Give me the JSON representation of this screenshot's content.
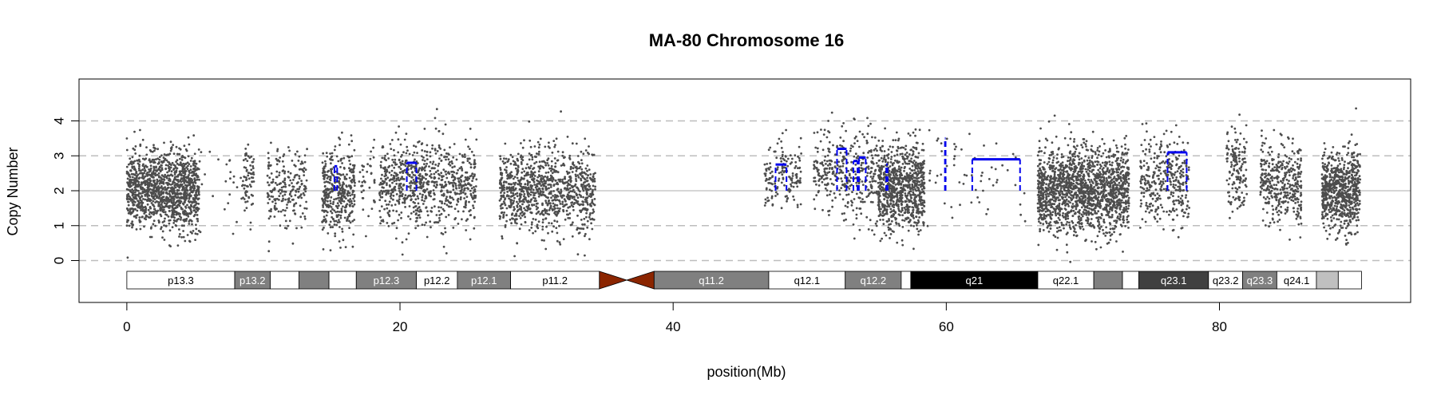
{
  "chart_data": {
    "type": "scatter",
    "title": "MA-80  Chromosome 16",
    "xlabel": "position(Mb)",
    "ylabel": "Copy Number",
    "xlim": [
      -3.5,
      94
    ],
    "ylim": [
      -1.2,
      5.2
    ],
    "x_ticks": [
      0,
      20,
      40,
      60,
      80
    ],
    "y_ticks": [
      0,
      1,
      2,
      3,
      4
    ],
    "reference_lines": {
      "solid": [
        2
      ],
      "dashed": [
        0,
        1,
        3,
        4
      ]
    },
    "colors": {
      "points": "#4d4d4d",
      "segments": "#0000ee",
      "centromere": "#8b2500",
      "grid_dashed": "#bdbdbd",
      "grid_solid": "#c8c8c8"
    },
    "point_clusters": [
      {
        "x_range": [
          0,
          5.3
        ],
        "n": 1300,
        "mean": 2.0,
        "sd": 0.55
      },
      {
        "x_range": [
          5.3,
          8.5
        ],
        "n": 25,
        "mean": 2.2,
        "sd": 0.6
      },
      {
        "x_range": [
          8.5,
          9.3
        ],
        "n": 70,
        "mean": 2.2,
        "sd": 0.5
      },
      {
        "x_range": [
          10.3,
          13.2
        ],
        "n": 220,
        "mean": 2.1,
        "sd": 0.55
      },
      {
        "x_range": [
          14.3,
          16.7
        ],
        "n": 380,
        "mean": 1.9,
        "sd": 0.65
      },
      {
        "x_range": [
          17.0,
          18.2
        ],
        "n": 40,
        "mean": 2.2,
        "sd": 0.5
      },
      {
        "x_range": [
          18.5,
          25.6
        ],
        "n": 800,
        "mean": 2.2,
        "sd": 0.6
      },
      {
        "x_range": [
          27.3,
          34.3
        ],
        "n": 1000,
        "mean": 2.0,
        "sd": 0.6
      },
      {
        "x_range": [
          46.7,
          49.4
        ],
        "n": 160,
        "mean": 2.4,
        "sd": 0.55
      },
      {
        "x_range": [
          50.3,
          52.4
        ],
        "n": 150,
        "mean": 2.6,
        "sd": 0.55
      },
      {
        "x_range": [
          52.4,
          55.0
        ],
        "n": 220,
        "mean": 2.4,
        "sd": 0.65
      },
      {
        "x_range": [
          55.0,
          58.4
        ],
        "n": 850,
        "mean": 2.1,
        "sd": 0.6
      },
      {
        "x_range": [
          58.5,
          65.8
        ],
        "n": 60,
        "mean": 2.4,
        "sd": 0.7
      },
      {
        "x_range": [
          66.7,
          73.4
        ],
        "n": 1700,
        "mean": 2.0,
        "sd": 0.6
      },
      {
        "x_range": [
          74.2,
          77.8
        ],
        "n": 350,
        "mean": 2.3,
        "sd": 0.6
      },
      {
        "x_range": [
          80.5,
          82.0
        ],
        "n": 150,
        "mean": 2.6,
        "sd": 0.55
      },
      {
        "x_range": [
          83.0,
          86.0
        ],
        "n": 380,
        "mean": 2.2,
        "sd": 0.55
      },
      {
        "x_range": [
          87.5,
          90.3
        ],
        "n": 700,
        "mean": 2.0,
        "sd": 0.55
      }
    ],
    "segments": [
      {
        "x0": 15.2,
        "x1": 15.4,
        "y": 2.7,
        "style": "dashed"
      },
      {
        "x0": 20.5,
        "x1": 21.2,
        "y": 2.8,
        "style": "dashed"
      },
      {
        "x0": 47.5,
        "x1": 48.3,
        "y": 2.75,
        "style": "dashed"
      },
      {
        "x0": 52.0,
        "x1": 52.7,
        "y": 3.2,
        "style": "dashed"
      },
      {
        "x0": 53.2,
        "x1": 53.5,
        "y": 2.85,
        "style": "dashed"
      },
      {
        "x0": 53.6,
        "x1": 54.1,
        "y": 2.95,
        "style": "dashed"
      },
      {
        "x0": 55.6,
        "x1": 55.7,
        "y": 2.75,
        "style": "dashed"
      },
      {
        "x0": 59.9,
        "x1": 59.95,
        "y": 3.5,
        "style": "dashed"
      },
      {
        "x0": 61.9,
        "x1": 65.4,
        "y": 2.9,
        "style": "dashed"
      },
      {
        "x0": 76.2,
        "x1": 77.6,
        "y": 3.1,
        "style": "dashed"
      }
    ],
    "cytobands": [
      {
        "name": "p13.3",
        "start": 0,
        "end": 7.9,
        "fill": "#ffffff",
        "text": "#000000"
      },
      {
        "name": "p13.2",
        "start": 7.9,
        "end": 10.5,
        "fill": "#808080",
        "text": "#ffffff"
      },
      {
        "name": "",
        "start": 10.5,
        "end": 12.6,
        "fill": "#ffffff",
        "text": "#000000"
      },
      {
        "name": "",
        "start": 12.6,
        "end": 14.8,
        "fill": "#808080",
        "text": "#ffffff"
      },
      {
        "name": "",
        "start": 14.8,
        "end": 16.8,
        "fill": "#ffffff",
        "text": "#000000"
      },
      {
        "name": "p12.3",
        "start": 16.8,
        "end": 21.2,
        "fill": "#808080",
        "text": "#ffffff"
      },
      {
        "name": "p12.2",
        "start": 21.2,
        "end": 24.2,
        "fill": "#ffffff",
        "text": "#000000"
      },
      {
        "name": "p12.1",
        "start": 24.2,
        "end": 28.1,
        "fill": "#808080",
        "text": "#ffffff"
      },
      {
        "name": "p11.2",
        "start": 28.1,
        "end": 34.6,
        "fill": "#ffffff",
        "text": "#000000"
      },
      {
        "name": "q11.2",
        "start": 38.6,
        "end": 47.0,
        "fill": "#808080",
        "text": "#ffffff"
      },
      {
        "name": "q12.1",
        "start": 47.0,
        "end": 52.6,
        "fill": "#ffffff",
        "text": "#000000"
      },
      {
        "name": "q12.2",
        "start": 52.6,
        "end": 56.7,
        "fill": "#808080",
        "text": "#ffffff"
      },
      {
        "name": "",
        "start": 56.7,
        "end": 57.4,
        "fill": "#ffffff",
        "text": "#000000"
      },
      {
        "name": "q21",
        "start": 57.4,
        "end": 66.7,
        "fill": "#000000",
        "text": "#ffffff"
      },
      {
        "name": "q22.1",
        "start": 66.7,
        "end": 70.8,
        "fill": "#ffffff",
        "text": "#000000"
      },
      {
        "name": "",
        "start": 70.8,
        "end": 72.9,
        "fill": "#808080",
        "text": "#ffffff"
      },
      {
        "name": "",
        "start": 72.9,
        "end": 74.1,
        "fill": "#ffffff",
        "text": "#000000"
      },
      {
        "name": "q23.1",
        "start": 74.1,
        "end": 79.2,
        "fill": "#404040",
        "text": "#ffffff"
      },
      {
        "name": "q23.2",
        "start": 79.2,
        "end": 81.7,
        "fill": "#ffffff",
        "text": "#000000"
      },
      {
        "name": "q23.3",
        "start": 81.7,
        "end": 84.2,
        "fill": "#808080",
        "text": "#ffffff"
      },
      {
        "name": "q24.1",
        "start": 84.2,
        "end": 87.1,
        "fill": "#ffffff",
        "text": "#000000"
      },
      {
        "name": "",
        "start": 87.1,
        "end": 88.7,
        "fill": "#c0c0c0",
        "text": "#000000"
      },
      {
        "name": "",
        "start": 88.7,
        "end": 90.4,
        "fill": "#ffffff",
        "text": "#000000"
      }
    ],
    "centromere": {
      "start": 34.6,
      "mid": 36.6,
      "end": 38.6
    }
  }
}
